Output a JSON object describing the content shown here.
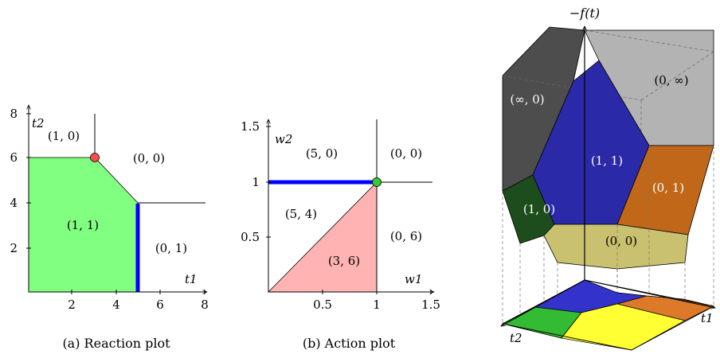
{
  "panel_a": {
    "caption": "(a) Reaction plot",
    "x_axis_label": "t1",
    "y_axis_label": "t2",
    "x_ticks": [
      "2",
      "4",
      "6",
      "8"
    ],
    "y_ticks": [
      "2",
      "4",
      "6",
      "8"
    ],
    "region_labels": {
      "top_left": "(1, 0)",
      "top_right": "(0, 0)",
      "center": "(1, 1)",
      "bottom_right": "(0, 1)"
    },
    "colors": {
      "region_fill": "#80ff80",
      "highlight_line": "#0000ff",
      "point": "#ff4d4d"
    }
  },
  "panel_b": {
    "caption": "(b) Action plot",
    "x_axis_label": "w1",
    "y_axis_label": "w2",
    "x_ticks": [
      "0.5",
      "1",
      "1.5"
    ],
    "y_ticks": [
      "0.5",
      "1",
      "1.5"
    ],
    "region_labels": {
      "top_left": "(5, 0)",
      "top_right": "(0, 0)",
      "middle_left": "(5, 4)",
      "right": "(0, 6)",
      "triangle": "(3, 6)"
    },
    "colors": {
      "region_fill": "#ffb3b3",
      "highlight_line": "#0000ff",
      "point": "#33cc33"
    }
  },
  "panel_c": {
    "z_axis_label": "−f(t)",
    "x_axis_label": "t1",
    "y_axis_label": "t2",
    "facet_labels": {
      "back_left": "(∞, 0)",
      "back_right": "(0, ∞)",
      "center": "(1, 1)",
      "left": "(1, 0)",
      "right": "(0, 1)",
      "bottom": "(0, 0)"
    },
    "colors": {
      "dark_gray": "#4d4d4d",
      "light_gray": "#b3b3b3",
      "blue": "#2a2aa8",
      "dark_green": "#1d4d1d",
      "orange": "#c0671a",
      "khaki": "#c9c070",
      "floor_blue": "#3333cc",
      "floor_green": "#33bb33",
      "floor_yellow": "#ffff33",
      "floor_orange": "#dd7a2a"
    }
  }
}
